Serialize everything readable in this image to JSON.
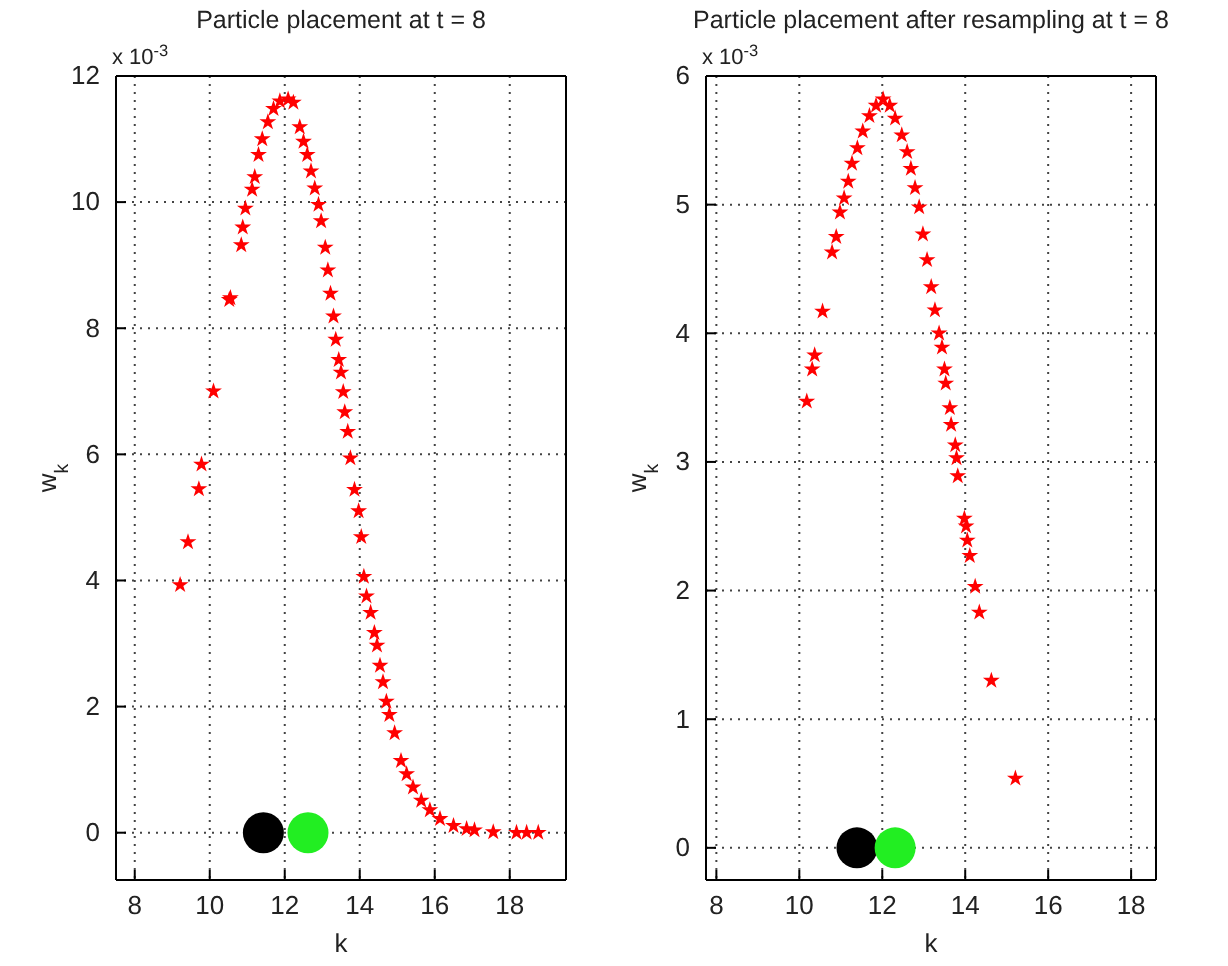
{
  "chart_data": [
    {
      "type": "scatter",
      "title": "Particle placement at t = 8",
      "xlabel": "k",
      "ylabel": "w$_{k}$",
      "annotations": [
        "x 10$^{-3}$"
      ],
      "xlim": [
        7.5,
        19.5
      ],
      "ylim": [
        -0.75,
        12
      ],
      "xticks": [
        8,
        10,
        12,
        14,
        16,
        18
      ],
      "yticks": [
        0,
        2,
        4,
        6,
        8,
        10,
        12
      ],
      "grid": true,
      "marker": "star",
      "series": [
        {
          "color": "#ff0000",
          "x": [
            9.21,
            9.42,
            9.71,
            9.78,
            10.1,
            10.52,
            10.55,
            10.84,
            10.88,
            10.95,
            11.13,
            11.2,
            11.3,
            11.4,
            11.55,
            11.7,
            11.87,
            12.09,
            12.23,
            12.4,
            12.5,
            12.6,
            12.7,
            12.8,
            12.9,
            12.97,
            13.08,
            13.15,
            13.22,
            13.3,
            13.36,
            13.44,
            13.5,
            13.56,
            13.6,
            13.68,
            13.75,
            13.86,
            13.97,
            14.04,
            14.11,
            14.18,
            14.29,
            14.39,
            14.46,
            14.54,
            14.62,
            14.71,
            14.79,
            14.93,
            15.1,
            15.25,
            15.42,
            15.64,
            15.87,
            16.14,
            16.5,
            16.85,
            17.06,
            17.56,
            18.18,
            18.45,
            18.76
          ],
          "values": [
            3.93,
            4.61,
            5.45,
            5.84,
            7.0,
            8.45,
            8.48,
            9.32,
            9.6,
            9.9,
            10.2,
            10.4,
            10.75,
            11.0,
            11.27,
            11.48,
            11.6,
            11.63,
            11.58,
            11.19,
            10.96,
            10.75,
            10.49,
            10.22,
            9.96,
            9.7,
            9.28,
            8.92,
            8.55,
            8.19,
            7.82,
            7.5,
            7.3,
            6.99,
            6.67,
            6.36,
            5.94,
            5.44,
            5.1,
            4.69,
            4.06,
            3.75,
            3.49,
            3.17,
            2.97,
            2.65,
            2.39,
            2.08,
            1.87,
            1.58,
            1.14,
            0.93,
            0.72,
            0.51,
            0.36,
            0.22,
            0.11,
            0.06,
            0.04,
            0.01,
            0,
            0,
            0
          ]
        },
        {
          "color": "#000000",
          "marker": "circle",
          "x": [
            11.43
          ],
          "values": [
            0
          ]
        },
        {
          "color": "#22ee22",
          "marker": "circle",
          "x": [
            12.62
          ],
          "values": [
            0
          ]
        }
      ]
    },
    {
      "type": "scatter",
      "title": "Particle placement after resampling at t = 8",
      "xlabel": "k",
      "ylabel": "w$_{k}$",
      "annotations": [
        "x 10$^{-3}$"
      ],
      "xlim": [
        7.75,
        18.6
      ],
      "ylim": [
        -0.25,
        6
      ],
      "xticks": [
        8,
        10,
        12,
        14,
        16,
        18
      ],
      "yticks": [
        0,
        1,
        2,
        3,
        4,
        5,
        6
      ],
      "grid": true,
      "marker": "star",
      "series": [
        {
          "color": "#ff0000",
          "x": [
            10.18,
            10.31,
            10.37,
            10.56,
            10.79,
            10.89,
            10.98,
            11.08,
            11.18,
            11.27,
            11.4,
            11.53,
            11.69,
            11.85,
            12.02,
            12.18,
            12.31,
            12.47,
            12.6,
            12.69,
            12.79,
            12.89,
            12.98,
            13.08,
            13.18,
            13.27,
            13.37,
            13.44,
            13.5,
            13.53,
            13.63,
            13.66,
            13.76,
            13.79,
            13.82,
            13.98,
            14.02,
            14.05,
            14.11,
            14.24,
            14.34,
            14.63,
            15.21
          ],
          "values": [
            3.47,
            3.72,
            3.83,
            4.17,
            4.63,
            4.75,
            4.94,
            5.05,
            5.18,
            5.32,
            5.44,
            5.57,
            5.69,
            5.77,
            5.82,
            5.77,
            5.67,
            5.54,
            5.41,
            5.28,
            5.13,
            4.98,
            4.77,
            4.57,
            4.36,
            4.18,
            4.0,
            3.89,
            3.72,
            3.61,
            3.42,
            3.29,
            3.13,
            3.03,
            2.89,
            2.56,
            2.5,
            2.39,
            2.27,
            2.03,
            1.83,
            1.3,
            0.54
          ]
        },
        {
          "color": "#000000",
          "marker": "circle",
          "x": [
            11.39
          ],
          "values": [
            0
          ]
        },
        {
          "color": "#22ee22",
          "marker": "circle",
          "x": [
            12.31
          ],
          "values": [
            0
          ]
        }
      ]
    }
  ]
}
